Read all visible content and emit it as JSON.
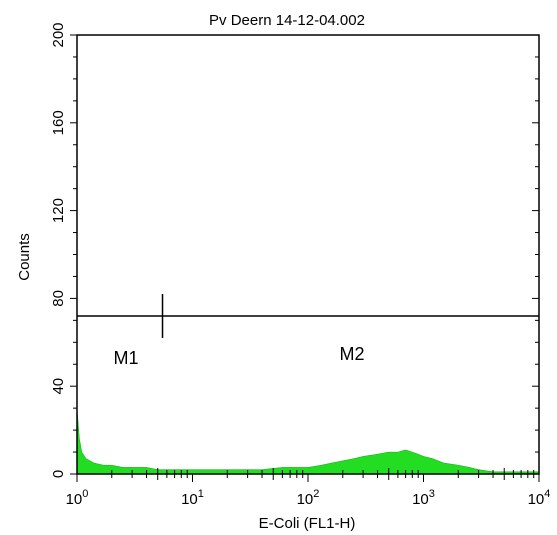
{
  "chart_data": {
    "type": "area",
    "title": "Pv Deern 14-12-04.002",
    "xlabel": "E-Coli (FL1-H)",
    "ylabel": "Counts",
    "x_scale": "log",
    "xlim": [
      1,
      10000
    ],
    "ylim": [
      0,
      200
    ],
    "x_ticks": [
      {
        "base": "10",
        "exp": "0",
        "value": 1
      },
      {
        "base": "10",
        "exp": "1",
        "value": 10
      },
      {
        "base": "10",
        "exp": "2",
        "value": 100
      },
      {
        "base": "10",
        "exp": "3",
        "value": 1000
      },
      {
        "base": "10",
        "exp": "4",
        "value": 10000
      }
    ],
    "y_ticks": [
      "0",
      "40",
      "80",
      "120",
      "160",
      "200"
    ],
    "y_tick_values": [
      0,
      40,
      80,
      120,
      160,
      200
    ],
    "series": [
      {
        "color": "#22dd22",
        "x": [
          1,
          1.05,
          1.1,
          1.2,
          1.4,
          1.7,
          2,
          2.5,
          3,
          4,
          5,
          6,
          8,
          10,
          15,
          20,
          30,
          40,
          60,
          80,
          100,
          130,
          160,
          200,
          250,
          300,
          400,
          500,
          600,
          700,
          800,
          900,
          1000,
          1200,
          1500,
          2000,
          2500,
          3000,
          4000,
          5000,
          7000,
          10000
        ],
        "y": [
          30,
          16,
          10,
          7,
          5,
          4,
          4,
          3,
          3,
          3,
          2,
          2,
          2,
          2,
          2,
          2,
          2,
          2,
          3,
          3,
          3,
          4,
          5,
          6,
          7,
          8,
          9,
          10,
          10,
          11,
          10,
          9,
          8,
          7,
          5,
          4,
          3,
          2,
          1,
          1,
          1,
          1
        ]
      }
    ],
    "markers": [
      {
        "label": "M1",
        "range": [
          1,
          5.5
        ],
        "y": 72
      },
      {
        "label": "M2",
        "range": [
          5.5,
          10000
        ],
        "y": 72
      }
    ],
    "grid": false,
    "legend": "none"
  }
}
